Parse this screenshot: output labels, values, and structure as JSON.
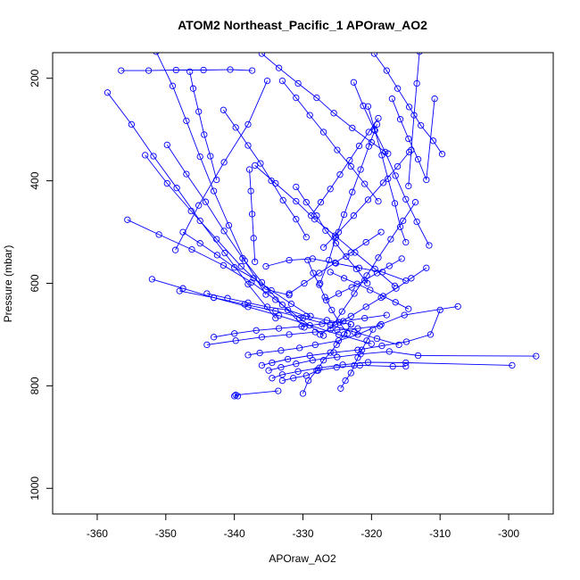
{
  "chart_data": {
    "type": "line",
    "title": "ATOM2 Northeast_Pacific_1 APOraw_AO2",
    "xlabel": "APOraw_AO2",
    "ylabel": "Pressure (mbar)",
    "xlim": [
      -366.5,
      -293.5
    ],
    "ylim": [
      1050,
      150
    ],
    "y_reversed": true,
    "x_ticks": [
      -360,
      -350,
      -340,
      -330,
      -320,
      -310,
      -300
    ],
    "x_tick_labels": [
      "-360",
      "-350",
      "-340",
      "-330",
      "-320",
      "-310",
      "-300"
    ],
    "y_ticks": [
      200,
      400,
      600,
      800,
      1000
    ],
    "y_tick_labels": [
      "200",
      "400",
      "600",
      "800",
      "1000"
    ],
    "grid": false,
    "marker": "open-circle",
    "colors": {
      "series": "#0000ff",
      "frame": "#000000",
      "text": "#000000"
    },
    "series": [
      {
        "x": [
          -340.0,
          -339.5,
          -339.8,
          -333.6
        ],
        "y": [
          820,
          820,
          818,
          810
        ]
      },
      {
        "x": [
          -333.0,
          -331.4,
          -329.5,
          -327.8,
          -325.1,
          -321.7,
          -316.9,
          -315.0
        ],
        "y": [
          790,
          785,
          780,
          770,
          764,
          760,
          762,
          762
        ]
      },
      {
        "x": [
          -338.0,
          -336.3,
          -333.2,
          -330.5,
          -328.2,
          -324.8,
          -322.0,
          -318.6,
          -315.2,
          -307.4
        ],
        "y": [
          740,
          736,
          731,
          726,
          720,
          712,
          700,
          680,
          662,
          645
        ]
      },
      {
        "x": [
          -336.0,
          -334.5,
          -332.2,
          -329.0,
          -325.5,
          -322.0,
          -318.5,
          -314.9,
          -311.4,
          -310.0
        ],
        "y": [
          760,
          755,
          748,
          741,
          735,
          730,
          722,
          714,
          700,
          652
        ]
      },
      {
        "x": [
          -335.0,
          -333.2,
          -331.0,
          -328.6,
          -325.0,
          -321.6,
          -317.4,
          -313.2,
          -296.0
        ],
        "y": [
          770,
          764,
          757,
          750,
          744,
          738,
          733,
          741,
          742
        ]
      },
      {
        "x": [
          -334.5,
          -333.0,
          -330.7,
          -327.6,
          -324.2,
          -320.5,
          -315.0,
          -299.5
        ],
        "y": [
          785,
          778,
          772,
          765,
          759,
          754,
          755,
          760
        ]
      },
      {
        "x": [
          -330.0,
          -329.2,
          -328.0,
          -327.0,
          -326.0,
          -325.1,
          -324.0,
          -323.0
        ],
        "y": [
          815,
          790,
          770,
          750,
          735,
          720,
          700,
          680
        ]
      },
      {
        "x": [
          -324.5,
          -323.8,
          -323.0,
          -322.5,
          -322.0,
          -321.4,
          -320.7,
          -319.8
        ],
        "y": [
          805,
          790,
          775,
          760,
          745,
          730,
          712,
          690
        ]
      },
      {
        "x": [
          -344.0,
          -339.8,
          -336.0,
          -332.0,
          -328.2,
          -325.0,
          -322.0,
          -318.8
        ],
        "y": [
          720,
          712,
          705,
          700,
          695,
          691,
          688,
          683
        ]
      },
      {
        "x": [
          -343.0,
          -340.0,
          -336.8,
          -333.5,
          -330.2,
          -327.2,
          -324.1,
          -321.0,
          -317.8
        ],
        "y": [
          705,
          698,
          692,
          688,
          684,
          679,
          674,
          668,
          662
        ]
      },
      {
        "x": [
          -348.0,
          -343.0,
          -338.5,
          -334.0,
          -330.0,
          -326.0,
          -322.5,
          -319.2,
          -316.0
        ],
        "y": [
          615,
          628,
          641,
          654,
          668,
          681,
          695,
          708,
          720
        ]
      },
      {
        "x": [
          -352.0,
          -347.5,
          -343.0,
          -338.0,
          -333.5,
          -329.0,
          -324.8,
          -320.0
        ],
        "y": [
          592,
          610,
          628,
          646,
          663,
          682,
          700,
          718
        ]
      },
      {
        "x": [
          -344.0,
          -341.0,
          -338.0,
          -335.2,
          -332.2,
          -329.5,
          -326.5,
          -323.0
        ],
        "y": [
          620,
          629,
          638,
          646,
          652,
          664,
          672,
          680
        ]
      },
      {
        "x": [
          -347.5,
          -345.0,
          -342.5,
          -340.0,
          -337.2,
          -334.6,
          -331.7,
          -328.9
        ],
        "y": [
          500,
          522,
          545,
          569,
          590,
          614,
          640,
          664
        ]
      },
      {
        "x": [
          -355.6,
          -351.0,
          -346.2,
          -341.6,
          -337.5,
          -334.0,
          -330.5,
          -327.0
        ],
        "y": [
          476,
          505,
          534,
          565,
          598,
          632,
          668,
          702
        ]
      },
      {
        "x": [
          -358.5,
          -355.0,
          -351.8,
          -348.4,
          -345.0,
          -341.4,
          -338.0,
          -334.0
        ],
        "y": [
          228,
          290,
          352,
          414,
          478,
          541,
          602,
          668
        ]
      },
      {
        "x": [
          -353.0,
          -349.8,
          -346.3,
          -342.6,
          -339.0,
          -335.4,
          -332.0
        ],
        "y": [
          350,
          405,
          459,
          514,
          567,
          612,
          623
        ]
      },
      {
        "x": [
          -349.8,
          -347.0,
          -344.2,
          -341.5,
          -338.8,
          -336.0,
          -333.0,
          -329.8
        ],
        "y": [
          330,
          387,
          441,
          498,
          551,
          598,
          642,
          686
        ]
      },
      {
        "x": [
          -351.4,
          -349.0,
          -347.0,
          -345.0,
          -343.0,
          -340.8,
          -338.5,
          -335.4
        ],
        "y": [
          148,
          215,
          283,
          353,
          420,
          487,
          556,
          622
        ]
      },
      {
        "x": [
          -348.6,
          -345.2,
          -341.5,
          -338.0,
          -335.2
        ],
        "y": [
          535,
          448,
          364,
          290,
          205
        ]
      },
      {
        "x": [
          -356.5,
          -352.5,
          -348.5,
          -344.5,
          -340.6,
          -337.4
        ],
        "y": [
          185,
          185,
          184,
          184,
          183,
          185
        ]
      },
      {
        "x": [
          -346.5,
          -346.0,
          -345.2,
          -344.4,
          -343.5,
          -342.6
        ],
        "y": [
          187,
          220,
          265,
          310,
          352,
          398
        ]
      },
      {
        "x": [
          -341.6,
          -339.8,
          -338.0,
          -336.2,
          -334.6,
          -332.9,
          -331.0,
          -329.5
        ],
        "y": [
          262,
          296,
          331,
          366,
          400,
          438,
          475,
          510
        ]
      },
      {
        "x": [
          -337.8,
          -337.6,
          -337.4,
          -337.2,
          -337.0
        ],
        "y": [
          378,
          420,
          465,
          512,
          558
        ]
      },
      {
        "x": [
          -337.0,
          -334.0,
          -331.0,
          -328.3,
          -325.3,
          -322.4,
          -319.5,
          -316.6
        ],
        "y": [
          370,
          405,
          440,
          475,
          507,
          540,
          572,
          605
        ]
      },
      {
        "x": [
          -336.0,
          -333.5,
          -330.7,
          -328.0,
          -325.5,
          -322.8,
          -320.0,
          -317.6
        ],
        "y": [
          152,
          180,
          210,
          238,
          268,
          297,
          325,
          347
        ]
      },
      {
        "x": [
          -333.0,
          -331.0,
          -329.0,
          -327.0,
          -325.0,
          -323.0,
          -321.0,
          -319.0
        ],
        "y": [
          205,
          238,
          272,
          305,
          340,
          372,
          406,
          440
        ]
      },
      {
        "x": [
          -331.0,
          -329.5,
          -328.0,
          -326.7,
          -325.2,
          -323.7,
          -322.2,
          -320.6
        ],
        "y": [
          412,
          442,
          468,
          497,
          522,
          548,
          572,
          600
        ]
      },
      {
        "x": [
          -329.3,
          -328.5,
          -327.6,
          -326.8,
          -325.8,
          -324.7,
          -323.5
        ],
        "y": [
          555,
          580,
          603,
          627,
          652,
          676,
          698
        ]
      },
      {
        "x": [
          -328.8,
          -327.4,
          -326.0,
          -324.6,
          -323.2,
          -321.8,
          -320.4,
          -319.0
        ],
        "y": [
          468,
          442,
          416,
          388,
          360,
          332,
          305,
          278
        ]
      },
      {
        "x": [
          -327.5,
          -326.2,
          -325.2,
          -324.0,
          -322.8,
          -321.6,
          -320.4,
          -319.2
        ],
        "y": [
          600,
          555,
          510,
          466,
          422,
          378,
          333,
          290
        ]
      },
      {
        "x": [
          -327.0,
          -324.8,
          -322.6,
          -320.5,
          -318.3,
          -316.2,
          -314.5
        ],
        "y": [
          530,
          500,
          468,
          437,
          404,
          372,
          344
        ]
      },
      {
        "x": [
          -326.0,
          -324.3,
          -322.5,
          -320.7,
          -319.0,
          -317.2,
          -315.4,
          -313.6
        ],
        "y": [
          690,
          655,
          620,
          585,
          550,
          514,
          478,
          442
        ]
      },
      {
        "x": [
          -322.6,
          -321.2,
          -319.6,
          -318.0,
          -316.5,
          -315.0,
          -313.4,
          -311.6
        ],
        "y": [
          208,
          254,
          300,
          344,
          390,
          436,
          480,
          526
        ]
      },
      {
        "x": [
          -320.5,
          -319.5,
          -318.5,
          -317.6,
          -316.6,
          -315.8,
          -315.0
        ],
        "y": [
          255,
          302,
          350,
          396,
          444,
          490,
          520
        ]
      },
      {
        "x": [
          -319.6,
          -317.8,
          -316.2,
          -314.5,
          -312.8,
          -311.0,
          -309.7
        ],
        "y": [
          152,
          185,
          220,
          256,
          292,
          322,
          348
        ]
      },
      {
        "x": [
          -317.0,
          -315.8,
          -314.6,
          -313.2,
          -312.0,
          -310.8
        ],
        "y": [
          240,
          280,
          318,
          358,
          398,
          240
        ]
      },
      {
        "x": [
          -313.0,
          -313.4,
          -313.8,
          -314.2,
          -314.6
        ],
        "y": [
          148,
          210,
          272,
          340,
          410
        ]
      },
      {
        "x": [
          -312.0,
          -314.2,
          -316.4,
          -318.6,
          -320.8,
          -323.0,
          -325.3,
          -327.5
        ],
        "y": [
          570,
          590,
          610,
          628,
          646,
          664,
          681,
          700
        ]
      },
      {
        "x": [
          -314.6,
          -316.5,
          -318.3,
          -320.2,
          -322.1,
          -324.0,
          -326.0
        ],
        "y": [
          650,
          637,
          625,
          613,
          601,
          590,
          578
        ]
      },
      {
        "x": [
          -315.6,
          -317.4,
          -319.2,
          -321.0,
          -322.9,
          -324.8,
          -326.6
        ],
        "y": [
          552,
          566,
          580,
          594,
          608,
          620,
          633
        ]
      },
      {
        "x": [
          -315.0,
          -318.4,
          -321.8,
          -325.2,
          -328.6,
          -332.0,
          -335.4
        ],
        "y": [
          595,
          578,
          570,
          561,
          552,
          555,
          567
        ]
      },
      {
        "x": [
          -318.6,
          -320.8,
          -323.0,
          -325.3,
          -327.6,
          -329.8,
          -332.0
        ],
        "y": [
          500,
          520,
          540,
          560,
          580,
          600,
          620
        ]
      }
    ]
  }
}
